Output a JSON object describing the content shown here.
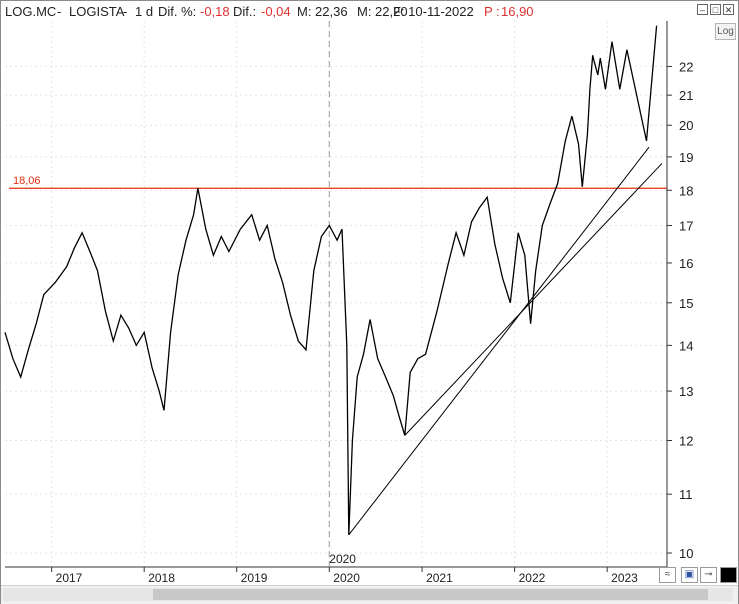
{
  "title": {
    "ticker": "LOG.MC",
    "separator1": "-",
    "name": "LOGISTA",
    "separator2": "-",
    "period": "1 d",
    "dif_pct_label": "Dif. %:",
    "dif_pct_value": "-0,18",
    "dif_label": "Dif.:",
    "dif_value": "-0,04",
    "m_label": "M: 22,36",
    "m_value": "22,36",
    "f_label": "M: 22,20",
    "f_value": "22,20",
    "date": "F: 10-11-2022",
    "p_label": "P :",
    "p_value": "16,90"
  },
  "log_button": "Log",
  "colors": {
    "price_line": "#000000",
    "horizontal_line": "#e03010",
    "negative_text": "#e03030",
    "vertical_marker": "#9a9a9a"
  },
  "chart_data": {
    "type": "line",
    "title": "",
    "xlabel": "",
    "ylabel": "",
    "scale": "log",
    "ylim": [
      10,
      23
    ],
    "y_ticks": [
      10,
      11,
      12,
      13,
      14,
      15,
      16,
      17,
      18,
      19,
      20,
      21,
      22
    ],
    "x_ticks": [
      "2017",
      "2018",
      "2019",
      "2020",
      "2021",
      "2022",
      "2023"
    ],
    "x_tick_dates": [
      "2017-01-01",
      "2018-01-01",
      "2019-01-01",
      "2020-01-01",
      "2021-01-01",
      "2022-01-01",
      "2023-01-01"
    ],
    "xlim": [
      "2016-07-01",
      "2023-08-25"
    ],
    "grid": true,
    "vertical_marker": {
      "date": "2020-01-01",
      "label": "2020"
    },
    "horizontal_line": {
      "value": 18.06,
      "label": "18,06"
    },
    "series": [
      {
        "values": [
          {
            "x": "2016-07-01",
            "y": 14.3
          },
          {
            "x": "2016-08-01",
            "y": 13.7
          },
          {
            "x": "2016-09-01",
            "y": 13.3
          },
          {
            "x": "2016-10-01",
            "y": 13.9
          },
          {
            "x": "2016-11-01",
            "y": 14.5
          },
          {
            "x": "2016-12-01",
            "y": 15.2
          },
          {
            "x": "2017-01-15",
            "y": 15.5
          },
          {
            "x": "2017-03-01",
            "y": 15.9
          },
          {
            "x": "2017-04-01",
            "y": 16.4
          },
          {
            "x": "2017-05-01",
            "y": 16.8
          },
          {
            "x": "2017-06-01",
            "y": 16.3
          },
          {
            "x": "2017-07-01",
            "y": 15.8
          },
          {
            "x": "2017-08-01",
            "y": 14.8
          },
          {
            "x": "2017-09-01",
            "y": 14.1
          },
          {
            "x": "2017-10-01",
            "y": 14.7
          },
          {
            "x": "2017-11-01",
            "y": 14.4
          },
          {
            "x": "2017-12-01",
            "y": 14.0
          },
          {
            "x": "2018-01-01",
            "y": 14.3
          },
          {
            "x": "2018-02-01",
            "y": 13.5
          },
          {
            "x": "2018-03-01",
            "y": 13.0
          },
          {
            "x": "2018-03-20",
            "y": 12.6
          },
          {
            "x": "2018-04-15",
            "y": 14.3
          },
          {
            "x": "2018-05-15",
            "y": 15.7
          },
          {
            "x": "2018-06-15",
            "y": 16.6
          },
          {
            "x": "2018-07-15",
            "y": 17.3
          },
          {
            "x": "2018-08-01",
            "y": 18.06
          },
          {
            "x": "2018-09-01",
            "y": 16.9
          },
          {
            "x": "2018-10-01",
            "y": 16.2
          },
          {
            "x": "2018-11-01",
            "y": 16.7
          },
          {
            "x": "2018-12-01",
            "y": 16.3
          },
          {
            "x": "2019-01-15",
            "y": 16.9
          },
          {
            "x": "2019-03-01",
            "y": 17.3
          },
          {
            "x": "2019-04-01",
            "y": 16.6
          },
          {
            "x": "2019-05-01",
            "y": 17.0
          },
          {
            "x": "2019-06-01",
            "y": 16.1
          },
          {
            "x": "2019-07-01",
            "y": 15.5
          },
          {
            "x": "2019-08-01",
            "y": 14.7
          },
          {
            "x": "2019-09-01",
            "y": 14.1
          },
          {
            "x": "2019-10-01",
            "y": 13.9
          },
          {
            "x": "2019-11-01",
            "y": 15.8
          },
          {
            "x": "2019-12-01",
            "y": 16.7
          },
          {
            "x": "2020-01-01",
            "y": 17.0
          },
          {
            "x": "2020-02-01",
            "y": 16.6
          },
          {
            "x": "2020-02-20",
            "y": 16.9
          },
          {
            "x": "2020-03-10",
            "y": 14.0
          },
          {
            "x": "2020-03-18",
            "y": 10.3
          },
          {
            "x": "2020-04-01",
            "y": 12.0
          },
          {
            "x": "2020-04-20",
            "y": 13.3
          },
          {
            "x": "2020-05-15",
            "y": 13.8
          },
          {
            "x": "2020-06-10",
            "y": 14.6
          },
          {
            "x": "2020-07-10",
            "y": 13.7
          },
          {
            "x": "2020-08-10",
            "y": 13.3
          },
          {
            "x": "2020-09-10",
            "y": 12.9
          },
          {
            "x": "2020-10-01",
            "y": 12.5
          },
          {
            "x": "2020-10-25",
            "y": 12.1
          },
          {
            "x": "2020-11-15",
            "y": 13.4
          },
          {
            "x": "2020-12-15",
            "y": 13.7
          },
          {
            "x": "2021-01-15",
            "y": 13.8
          },
          {
            "x": "2021-03-01",
            "y": 14.8
          },
          {
            "x": "2021-04-15",
            "y": 16.0
          },
          {
            "x": "2021-05-15",
            "y": 16.8
          },
          {
            "x": "2021-06-15",
            "y": 16.2
          },
          {
            "x": "2021-07-15",
            "y": 17.1
          },
          {
            "x": "2021-08-15",
            "y": 17.5
          },
          {
            "x": "2021-09-15",
            "y": 17.8
          },
          {
            "x": "2021-10-15",
            "y": 16.5
          },
          {
            "x": "2021-11-15",
            "y": 15.6
          },
          {
            "x": "2021-12-15",
            "y": 15.0
          },
          {
            "x": "2022-01-15",
            "y": 16.8
          },
          {
            "x": "2022-02-10",
            "y": 16.2
          },
          {
            "x": "2022-03-05",
            "y": 14.5
          },
          {
            "x": "2022-03-25",
            "y": 15.8
          },
          {
            "x": "2022-04-20",
            "y": 17.0
          },
          {
            "x": "2022-05-20",
            "y": 17.6
          },
          {
            "x": "2022-06-20",
            "y": 18.2
          },
          {
            "x": "2022-07-20",
            "y": 19.5
          },
          {
            "x": "2022-08-15",
            "y": 20.3
          },
          {
            "x": "2022-09-10",
            "y": 19.4
          },
          {
            "x": "2022-09-25",
            "y": 18.1
          },
          {
            "x": "2022-10-15",
            "y": 19.7
          },
          {
            "x": "2022-10-25",
            "y": 21.2
          },
          {
            "x": "2022-11-05",
            "y": 22.4
          },
          {
            "x": "2022-11-10",
            "y": 22.2
          }
        ]
      }
    ],
    "projection": [
      {
        "x": "2022-11-10",
        "y": 22.2
      },
      {
        "x": "2022-11-25",
        "y": 21.7
      },
      {
        "x": "2022-12-05",
        "y": 22.3
      },
      {
        "x": "2022-12-25",
        "y": 21.2
      },
      {
        "x": "2023-01-20",
        "y": 22.9
      },
      {
        "x": "2023-02-20",
        "y": 21.2
      },
      {
        "x": "2023-03-20",
        "y": 22.6
      },
      {
        "x": "2023-06-05",
        "y": 19.5
      },
      {
        "x": "2023-07-15",
        "y": 23.5
      }
    ],
    "trendlines": [
      {
        "from": {
          "x": "2020-03-18",
          "y": 10.3
        },
        "to": {
          "x": "2023-06-15",
          "y": 19.3
        }
      },
      {
        "from": {
          "x": "2020-10-25",
          "y": 12.1
        },
        "to": {
          "x": "2023-08-05",
          "y": 18.8
        }
      }
    ]
  }
}
